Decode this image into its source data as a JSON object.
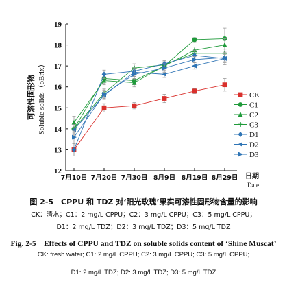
{
  "chart_data": {
    "type": "line",
    "categories": [
      "7月10日",
      "7月20日",
      "7月30日",
      "8月9日",
      "8月19日",
      "8月29日"
    ],
    "ylim": [
      12,
      19
    ],
    "yticks": [
      12,
      13,
      14,
      15,
      16,
      17,
      18,
      19
    ],
    "ylabel_cn": "可溶性固形物",
    "ylabel_en": "Soluble solids（oBrix）",
    "xlabel_cn": "日期",
    "xlabel_en": "Date",
    "legend_position": "right",
    "series": [
      {
        "name": "CK",
        "color": "#d9302c",
        "marker": "square",
        "values": [
          13.0,
          15.0,
          15.1,
          15.45,
          15.8,
          16.1
        ],
        "errors": [
          0.3,
          0.2,
          0.15,
          0.2,
          0.12,
          0.3
        ]
      },
      {
        "name": "C1",
        "color": "#1f9a3a",
        "marker": "circle",
        "values": [
          14.0,
          16.4,
          16.3,
          17.0,
          18.25,
          18.3
        ],
        "errors": [
          0.25,
          0.25,
          0.2,
          0.2,
          0.1,
          0.5
        ]
      },
      {
        "name": "C2",
        "color": "#1f9a3a",
        "marker": "triangle-up",
        "values": [
          14.3,
          16.3,
          16.2,
          17.0,
          17.75,
          18.0
        ],
        "errors": [
          0.3,
          0.2,
          0.2,
          0.15,
          0.15,
          0.3
        ]
      },
      {
        "name": "C3",
        "color": "#1f9a3a",
        "marker": "cross",
        "values": [
          14.0,
          15.7,
          16.9,
          17.05,
          17.6,
          17.6
        ],
        "errors": [
          0.2,
          0.2,
          0.2,
          0.15,
          0.15,
          0.2
        ]
      },
      {
        "name": "D1",
        "color": "#2e74b5",
        "marker": "diamond",
        "values": [
          13.0,
          16.6,
          16.75,
          17.1,
          17.5,
          17.35
        ],
        "errors": [
          0.3,
          0.2,
          0.2,
          0.15,
          0.2,
          0.3
        ]
      },
      {
        "name": "D2",
        "color": "#2e74b5",
        "marker": "triangle-left",
        "values": [
          13.95,
          15.6,
          16.7,
          16.6,
          17.0,
          17.35
        ],
        "errors": [
          0.25,
          0.2,
          0.2,
          0.15,
          0.15,
          0.2
        ]
      },
      {
        "name": "D3",
        "color": "#2e74b5",
        "marker": "triangle-right",
        "values": [
          13.6,
          15.65,
          16.6,
          16.9,
          17.3,
          17.4
        ],
        "errors": [
          0.3,
          0.2,
          0.25,
          0.2,
          0.15,
          0.2
        ]
      }
    ]
  },
  "caption": {
    "cn_title": "图 2-5　CPPU 和 TDZ 对‘阳光玫瑰’果实可溶性固形物含量的影响",
    "cn_line1": "CK：清水；C1：2 mg/L CPPU；C2：3 mg/L CPPU；C3：5 mg/L CPPU；",
    "cn_line2": "D1：2 mg/L TDZ；D2：3 mg/L TDZ；D3：5 mg/L TDZ",
    "en_title": "Fig. 2-5　Effects of CPPU and TDZ on soluble solids content of ‘Shine Muscat’",
    "en_line1": "CK: fresh water; C1: 2 mg/L CPPU; C2: 3 mg/L CPPU; C3: 5 mg/L CPPU;",
    "en_line2": "D1: 2 mg/L TDZ; D2: 3 mg/L TDZ; D3: 5 mg/L TDZ"
  }
}
